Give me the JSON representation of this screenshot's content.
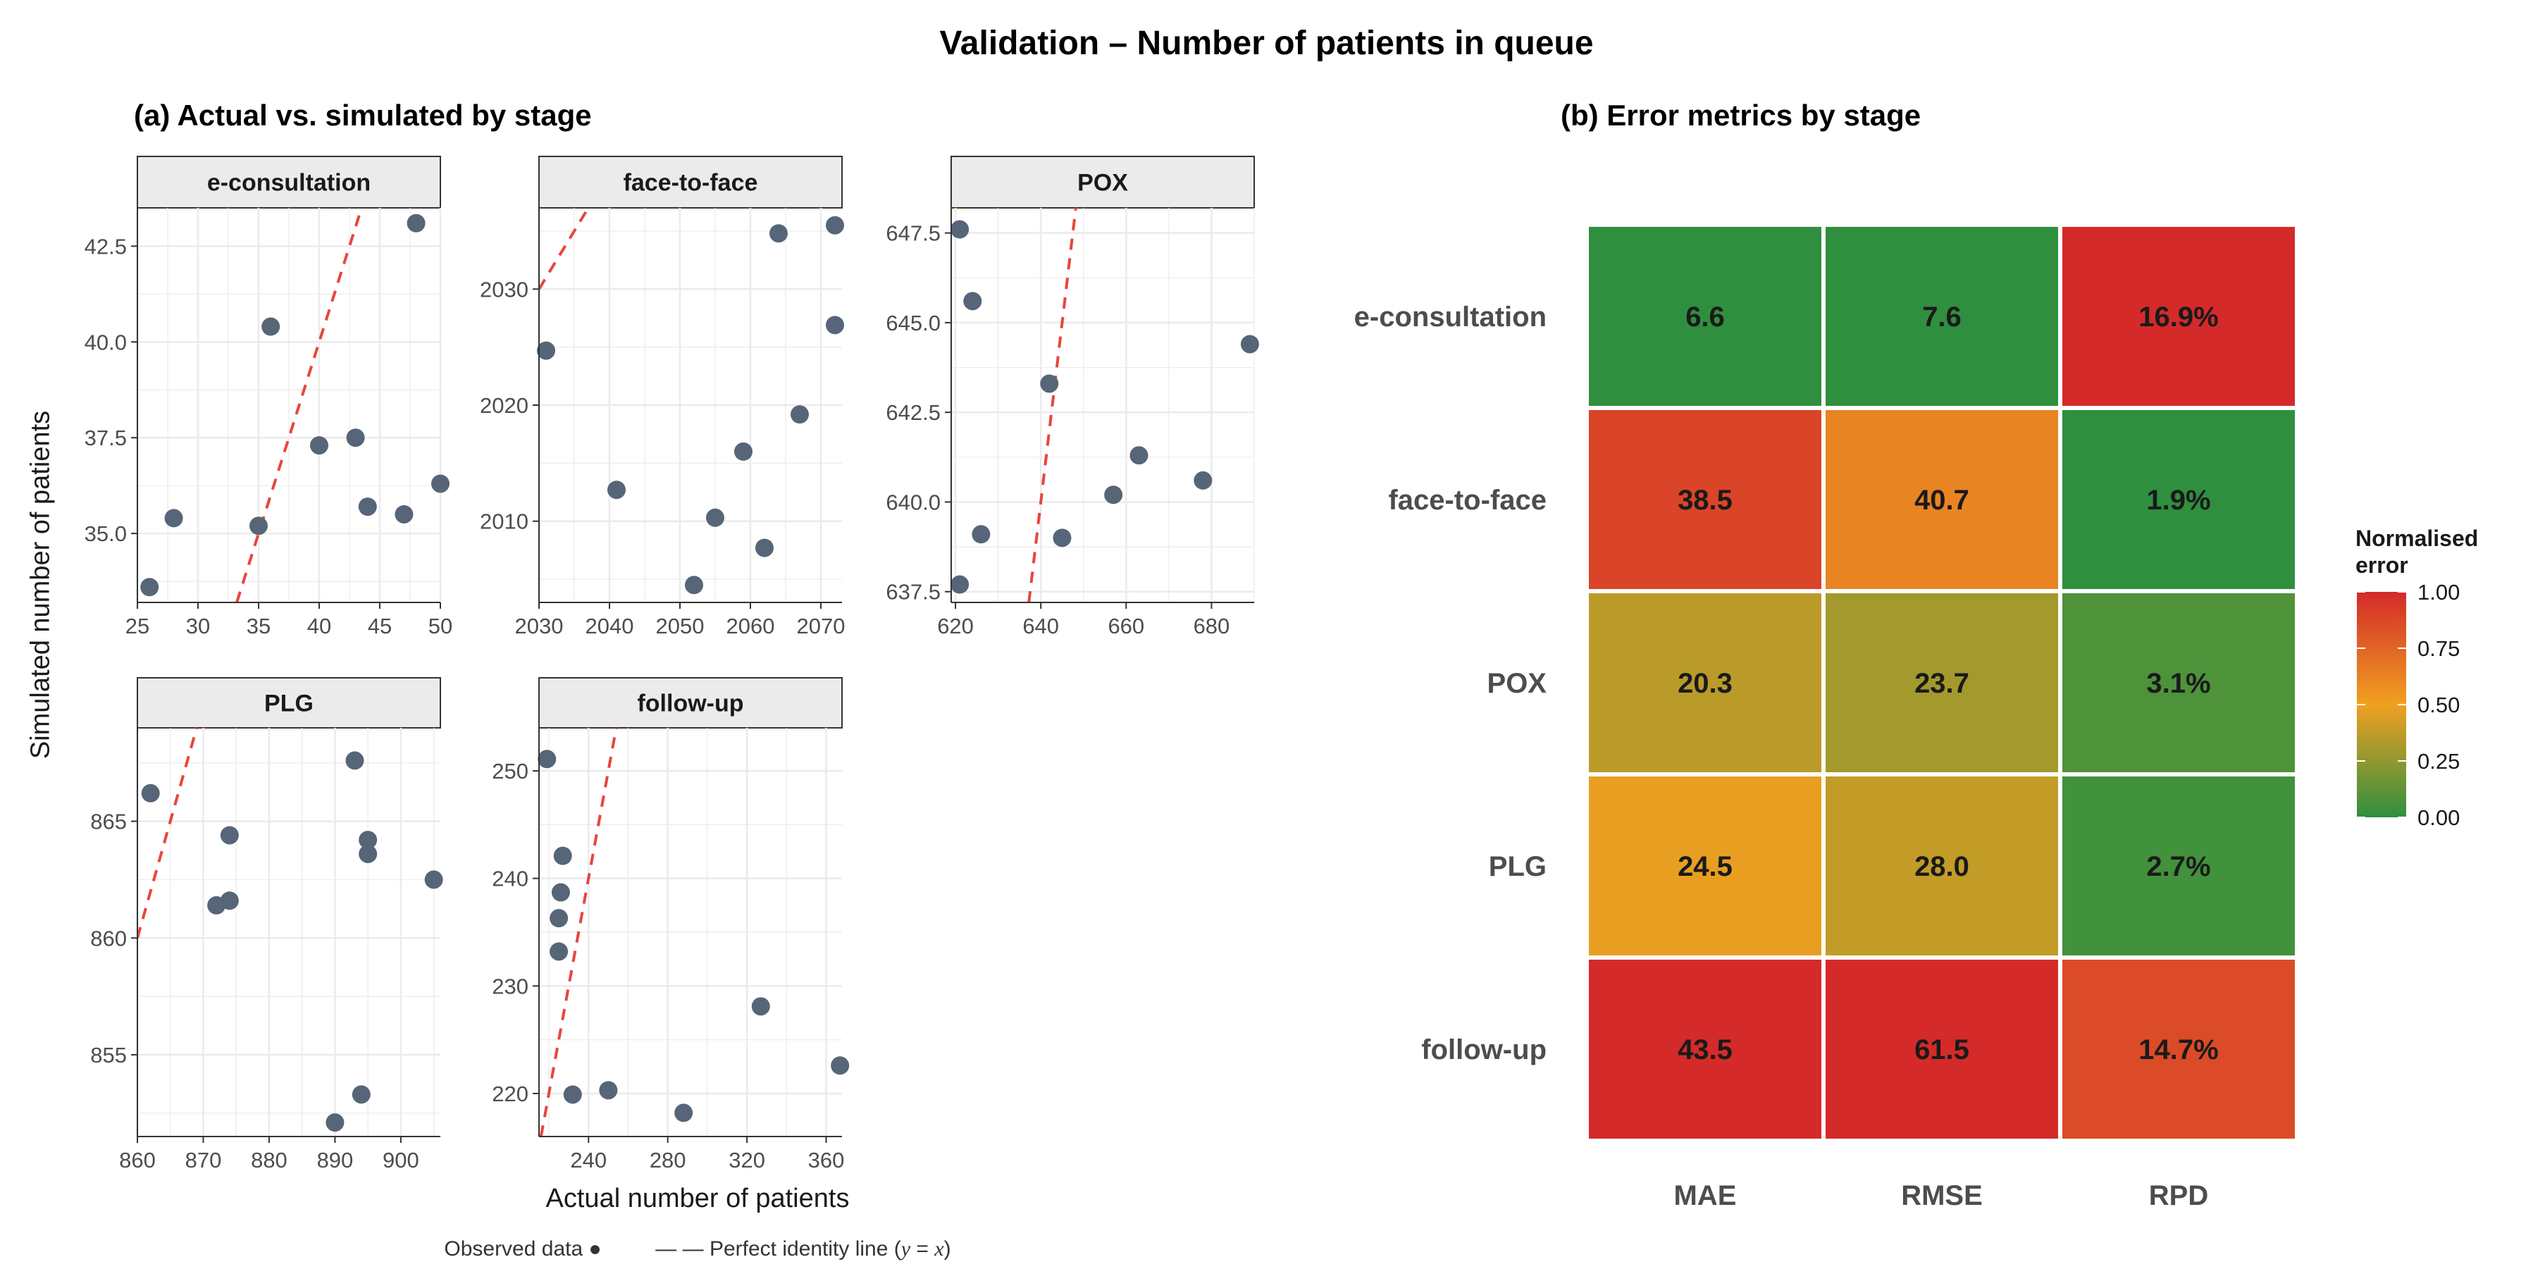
{
  "title": "Validation – Number of patients in queue",
  "panel_a": {
    "subtitle": "(a) Actual vs. simulated by stage",
    "ylabel": "Simulated number of patients",
    "xlabel": "Actual number of patients",
    "legend": {
      "observed": "Observed data ●",
      "identity_prefix": "— —  Perfect identity line (",
      "identity_y": "y",
      "identity_eq": " = ",
      "identity_x": "x",
      "identity_suffix": ")"
    }
  },
  "panel_b": {
    "subtitle": "(b) Error metrics by stage",
    "legend_title": "Normalised error"
  },
  "colors": {
    "point": "#566578",
    "identity_line": "#e8463c",
    "strip_fill": "#ebebeb",
    "grid": "#ebebeb",
    "heat_low": "#2f8f3f",
    "heat_mid": "#f0a020",
    "heat_high": "#d42a2a"
  },
  "chart_data": [
    {
      "type": "scatter",
      "facet": "e-consultation",
      "xlim": [
        25,
        50
      ],
      "ylim": [
        33.2,
        43.5
      ],
      "x_ticks": [
        25,
        30,
        35,
        40,
        45,
        50
      ],
      "y_ticks": [
        35.0,
        37.5,
        40.0,
        42.5
      ],
      "y_tick_labels": [
        "35.0",
        "37.5",
        "40.0",
        "42.5"
      ],
      "points": [
        [
          26,
          33.6
        ],
        [
          28,
          35.4
        ],
        [
          35,
          35.2
        ],
        [
          36,
          40.4
        ],
        [
          40,
          37.3
        ],
        [
          43,
          37.5
        ],
        [
          44,
          35.7
        ],
        [
          47,
          35.5
        ],
        [
          48,
          43.1
        ],
        [
          50,
          36.3
        ]
      ],
      "identity_line": true
    },
    {
      "type": "scatter",
      "facet": "face-to-face",
      "xlim": [
        2030,
        2073
      ],
      "ylim": [
        2003,
        2037
      ],
      "x_ticks": [
        2030,
        2040,
        2050,
        2060,
        2070
      ],
      "y_ticks": [
        2010,
        2020,
        2030
      ],
      "y_tick_labels": [
        "2010",
        "2020",
        "2030"
      ],
      "points": [
        [
          2031,
          2024.7
        ],
        [
          2041,
          2012.7
        ],
        [
          2052,
          2004.5
        ],
        [
          2055,
          2010.3
        ],
        [
          2059,
          2016.0
        ],
        [
          2062,
          2007.7
        ],
        [
          2064,
          2034.8
        ],
        [
          2067,
          2019.2
        ],
        [
          2072,
          2026.9
        ],
        [
          2072,
          2035.5
        ]
      ],
      "identity_line": true
    },
    {
      "type": "scatter",
      "facet": "POX",
      "xlim": [
        619,
        690
      ],
      "ylim": [
        637.2,
        648.2
      ],
      "x_ticks": [
        620,
        640,
        660,
        680
      ],
      "y_ticks": [
        637.5,
        640.0,
        642.5,
        645.0,
        647.5
      ],
      "y_tick_labels": [
        "637.5",
        "640.0",
        "642.5",
        "645.0",
        "647.5"
      ],
      "points": [
        [
          621,
          647.6
        ],
        [
          621,
          637.7
        ],
        [
          624,
          645.6
        ],
        [
          626,
          639.1
        ],
        [
          642,
          643.3
        ],
        [
          645,
          639.0
        ],
        [
          657,
          640.2
        ],
        [
          663,
          641.3
        ],
        [
          678,
          640.6
        ],
        [
          689,
          644.4
        ]
      ],
      "identity_line": true
    },
    {
      "type": "scatter",
      "facet": "PLG",
      "xlim": [
        860,
        906
      ],
      "ylim": [
        851.5,
        869
      ],
      "x_ticks": [
        860,
        870,
        880,
        890,
        900
      ],
      "y_ticks": [
        855,
        860,
        865
      ],
      "y_tick_labels": [
        "855",
        "860",
        "865"
      ],
      "points": [
        [
          862,
          866.2
        ],
        [
          872,
          861.4
        ],
        [
          874,
          861.6
        ],
        [
          874,
          864.4
        ],
        [
          890,
          852.1
        ],
        [
          893,
          867.6
        ],
        [
          894,
          853.3
        ],
        [
          895,
          864.2
        ],
        [
          895,
          863.6
        ],
        [
          905,
          862.5
        ]
      ],
      "identity_line": true
    },
    {
      "type": "scatter",
      "facet": "follow-up",
      "xlim": [
        215,
        368
      ],
      "ylim": [
        216,
        254
      ],
      "x_ticks": [
        240,
        280,
        320,
        360
      ],
      "y_ticks": [
        220,
        230,
        240,
        250
      ],
      "y_tick_labels": [
        "220",
        "230",
        "240",
        "250"
      ],
      "points": [
        [
          219,
          251.1
        ],
        [
          225,
          236.3
        ],
        [
          225,
          233.2
        ],
        [
          226,
          238.7
        ],
        [
          227,
          242.1
        ],
        [
          232,
          219.9
        ],
        [
          250,
          220.3
        ],
        [
          288,
          218.2
        ],
        [
          327,
          228.1
        ],
        [
          367,
          222.6
        ]
      ],
      "identity_line": true
    },
    {
      "type": "heatmap",
      "rows": [
        "e-consultation",
        "face-to-face",
        "POX",
        "PLG",
        "follow-up"
      ],
      "columns": [
        "MAE",
        "RMSE",
        "RPD"
      ],
      "labels": [
        [
          "6.6",
          "7.6",
          "16.9%"
        ],
        [
          "38.5",
          "40.7",
          "1.9%"
        ],
        [
          "20.3",
          "23.7",
          "3.1%"
        ],
        [
          "24.5",
          "28.0",
          "2.7%"
        ],
        [
          "43.5",
          "61.5",
          "14.7%"
        ]
      ],
      "normalised": [
        [
          0.0,
          0.0,
          1.0
        ],
        [
          0.89,
          0.62,
          0.0
        ],
        [
          0.36,
          0.3,
          0.08
        ],
        [
          0.48,
          0.38,
          0.05
        ],
        [
          1.0,
          1.0,
          0.86
        ]
      ],
      "legend": {
        "title": "Normalised error",
        "ticks": [
          0,
          0.25,
          0.5,
          0.75,
          1
        ],
        "tick_labels": [
          "0.00",
          "0.25",
          "0.50",
          "0.75",
          "1.00"
        ]
      }
    }
  ]
}
